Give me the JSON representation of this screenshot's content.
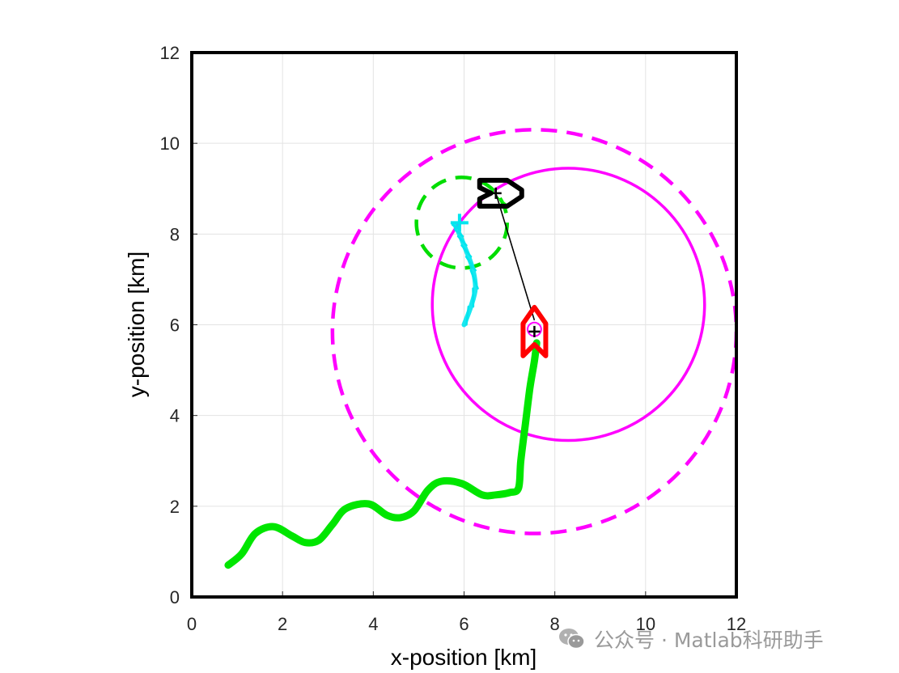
{
  "chart_data": {
    "type": "line",
    "title": "",
    "xlabel": "x-position [km]",
    "ylabel": "y-position [km]",
    "xlim": [
      0,
      12
    ],
    "ylim": [
      0,
      12
    ],
    "xticks": [
      "0",
      "2",
      "4",
      "6",
      "8",
      "10",
      "12"
    ],
    "yticks": [
      "0",
      "2",
      "4",
      "6",
      "8",
      "10",
      "12"
    ],
    "grid": true,
    "legend": "none",
    "colors": {
      "ownship": "#00e600",
      "target_red": "#ff0000",
      "target_black": "#000000",
      "intruder_cyan": "#00e5ee",
      "zone_magenta": "#ff00ff",
      "zone_green": "#00dd00"
    },
    "series": [
      {
        "style": "thick-line",
        "color": "#00e600",
        "x": [
          0.8,
          1.1,
          1.4,
          1.8,
          2.2,
          2.5,
          2.8,
          3.1,
          3.4,
          3.9,
          4.3,
          4.6,
          4.9,
          5.2,
          5.5,
          5.95,
          6.4,
          6.7,
          7.0,
          7.2,
          7.25,
          7.35,
          7.45,
          7.55,
          7.6
        ],
        "y": [
          0.7,
          0.95,
          1.4,
          1.55,
          1.35,
          1.2,
          1.25,
          1.6,
          1.95,
          2.05,
          1.8,
          1.75,
          1.9,
          2.35,
          2.55,
          2.5,
          2.25,
          2.25,
          2.3,
          2.4,
          3.0,
          3.8,
          4.6,
          5.2,
          5.6
        ]
      },
      {
        "style": "thin-line",
        "color": "#00ff00",
        "x": [
          7.0,
          6.75,
          6.6
        ],
        "y": [
          8.6,
          8.8,
          9.0
        ]
      },
      {
        "style": "thin-line",
        "color": "#000000",
        "x": [
          7.55,
          6.7
        ],
        "y": [
          6.1,
          8.9
        ]
      },
      {
        "style": "jittery-line",
        "color": "#00e5ee",
        "x": [
          6.0,
          6.15,
          6.25,
          6.2,
          6.1,
          6.0,
          5.92,
          5.85,
          5.8
        ],
        "y": [
          6.0,
          6.4,
          6.8,
          7.2,
          7.5,
          7.75,
          7.95,
          8.1,
          8.2
        ]
      }
    ],
    "circles": [
      {
        "style": "dashed",
        "color": "#ff00ff",
        "cx": 7.55,
        "cy": 5.85,
        "r": 4.45
      },
      {
        "style": "solid",
        "color": "#ff00ff",
        "cx": 8.3,
        "cy": 6.45,
        "r": 3.0
      },
      {
        "style": "dashed",
        "color": "#00dd00",
        "cx": 5.95,
        "cy": 8.25,
        "r": 1.0
      },
      {
        "style": "solid",
        "color": "#ff00ff",
        "cx": 7.55,
        "cy": 5.9,
        "r": 0.15
      }
    ],
    "markers": [
      {
        "shape": "vessel-up",
        "color": "#ff0000",
        "x": 7.55,
        "y": 5.85,
        "cross": true
      },
      {
        "shape": "vessel-right",
        "color": "#000000",
        "x": 6.7,
        "y": 8.9,
        "cross": true
      },
      {
        "shape": "cross",
        "color": "#00e5ee",
        "x": 5.9,
        "y": 8.25
      }
    ]
  },
  "watermark": {
    "icon": "wechat-icon",
    "text": "公众号 · Matlab科研助手"
  }
}
